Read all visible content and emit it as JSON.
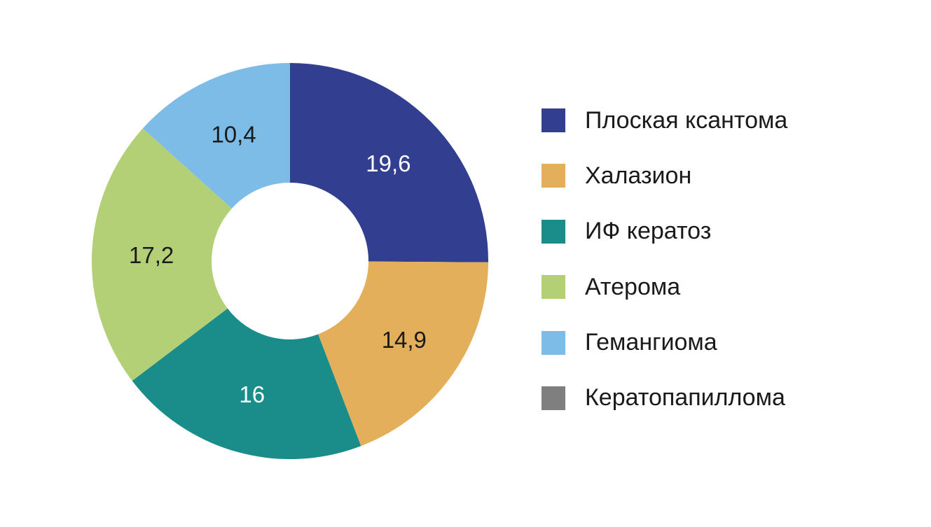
{
  "chart_data": {
    "type": "pie",
    "donut": true,
    "legend_position": "right",
    "series": [
      {
        "name": "Плоская ксантома",
        "value": 19.6,
        "label": "19,6",
        "color": "#323F91",
        "label_color": "#ffffff"
      },
      {
        "name": "Халазион",
        "value": 14.9,
        "label": "14,9",
        "color": "#E3AF5B",
        "label_color": "#1a1a1a"
      },
      {
        "name": "ИФ кератоз",
        "value": 16,
        "label": "16",
        "color": "#1A8C8A",
        "label_color": "#ffffff"
      },
      {
        "name": "Атерома",
        "value": 17.2,
        "label": "17,2",
        "color": "#B3D076",
        "label_color": "#1a1a1a"
      },
      {
        "name": "Гемангиома",
        "value": 10.4,
        "label": "10,4",
        "color": "#7DBCE6",
        "label_color": "#1a1a1a"
      },
      {
        "name": "Кератопапиллома",
        "value": null,
        "label": "",
        "color": "#7F7F7F",
        "label_color": "#1a1a1a"
      }
    ]
  }
}
